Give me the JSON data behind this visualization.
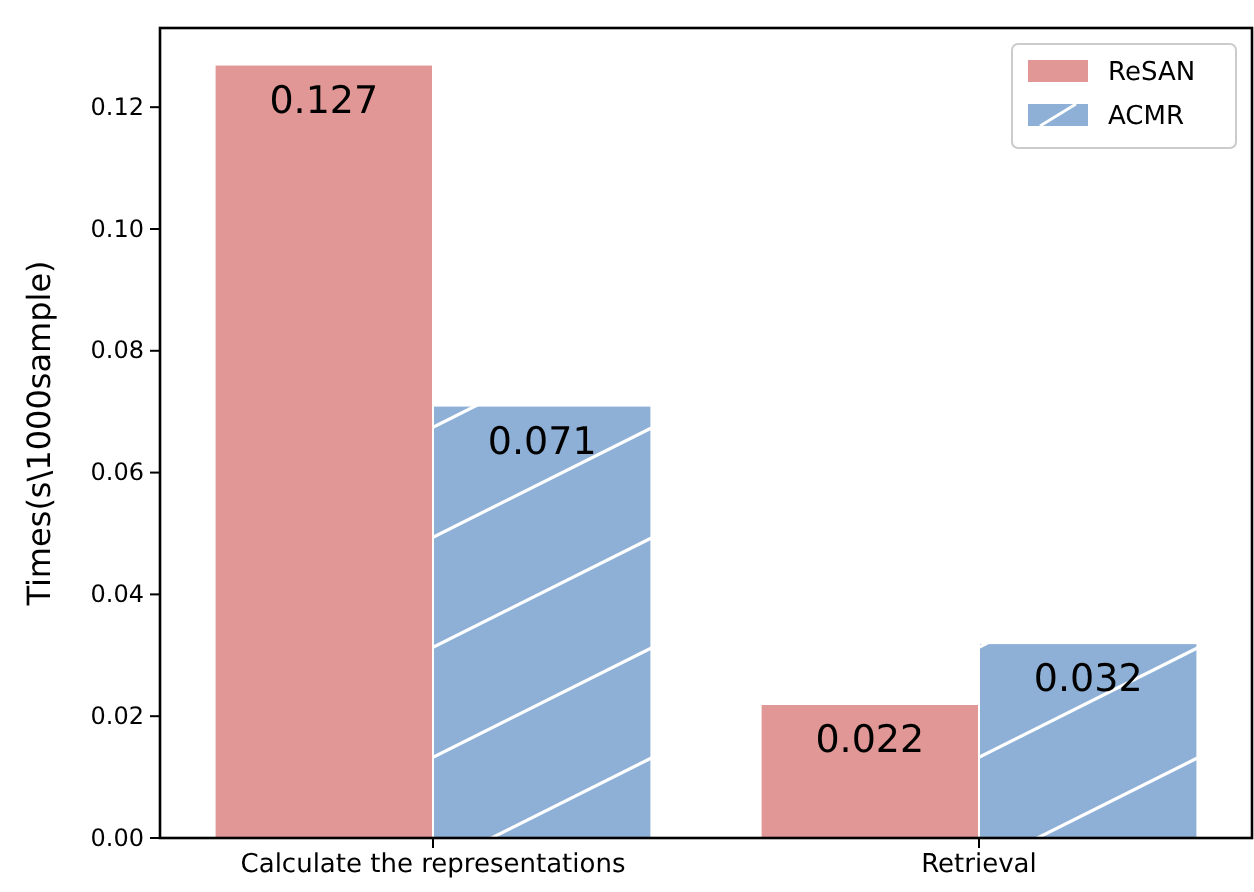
{
  "chart_data": {
    "type": "bar",
    "ylabel": "Times(s\\1000sample)",
    "categories": [
      "Calculate the representations",
      "Retrieval"
    ],
    "series": [
      {
        "name": "ReSAN",
        "color": "#e09795",
        "values": [
          0.127,
          0.022
        ]
      },
      {
        "name": "ACMR",
        "color": "#8fb0d6",
        "values": [
          0.071,
          0.032
        ]
      }
    ],
    "ylim": [
      0,
      0.133
    ],
    "yticks": [
      {
        "value": 0,
        "label": "0.00"
      },
      {
        "value": 0.02,
        "label": "0.02"
      },
      {
        "value": 0.04,
        "label": "0.04"
      },
      {
        "value": 0.06,
        "label": "0.06"
      },
      {
        "value": 0.08,
        "label": "0.08"
      },
      {
        "value": 0.1,
        "label": "0.10"
      },
      {
        "value": 0.12,
        "label": "0.12"
      }
    ],
    "data_labels": true,
    "legend": "top right",
    "grid": false
  }
}
